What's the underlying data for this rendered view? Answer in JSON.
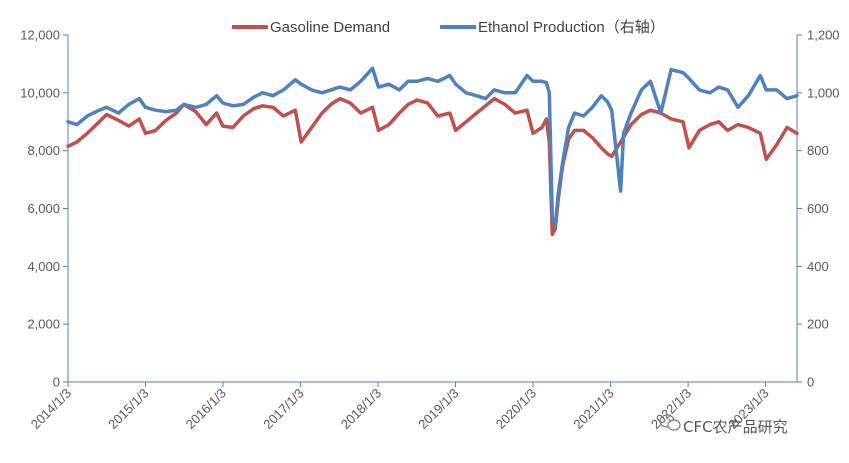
{
  "chart_data": {
    "type": "line",
    "title": "",
    "xlabel": "",
    "ylabel": "",
    "x_tick_labels": [
      "2014/1/3",
      "2015/1/3",
      "2016/1/3",
      "2017/1/3",
      "2018/1/3",
      "2019/1/3",
      "2020/1/3",
      "2021/1/3",
      "2022/1/3",
      "2023/1/3"
    ],
    "x_range": [
      "2014-01-03",
      "2023-05-31"
    ],
    "y_left": {
      "range": [
        0,
        12000
      ],
      "ticks": [
        "0",
        "2,000",
        "4,000",
        "6,000",
        "8,000",
        "10,000",
        "12,000"
      ]
    },
    "y_right": {
      "range": [
        0,
        1200
      ],
      "ticks": [
        "0",
        "200",
        "400",
        "600",
        "800",
        "1,000",
        "1,200"
      ]
    },
    "grid": false,
    "legend_position": "top",
    "series": [
      {
        "name": "Gasoline Demand",
        "axis": "left",
        "color": "#C0504D",
        "points": [
          [
            "2014-01-03",
            8150
          ],
          [
            "2014-02-14",
            8300
          ],
          [
            "2014-04-04",
            8600
          ],
          [
            "2014-05-30",
            9000
          ],
          [
            "2014-07-04",
            9250
          ],
          [
            "2014-08-29",
            9050
          ],
          [
            "2014-10-17",
            8850
          ],
          [
            "2014-12-05",
            9100
          ],
          [
            "2015-01-03",
            8600
          ],
          [
            "2015-02-20",
            8700
          ],
          [
            "2015-04-10",
            9050
          ],
          [
            "2015-05-29",
            9300
          ],
          [
            "2015-07-03",
            9600
          ],
          [
            "2015-08-28",
            9350
          ],
          [
            "2015-10-16",
            8900
          ],
          [
            "2015-12-04",
            9300
          ],
          [
            "2016-01-03",
            8850
          ],
          [
            "2016-02-19",
            8800
          ],
          [
            "2016-04-08",
            9200
          ],
          [
            "2016-05-27",
            9450
          ],
          [
            "2016-07-08",
            9550
          ],
          [
            "2016-08-26",
            9500
          ],
          [
            "2016-10-14",
            9200
          ],
          [
            "2016-12-09",
            9400
          ],
          [
            "2017-01-06",
            8300
          ],
          [
            "2017-02-24",
            8800
          ],
          [
            "2017-04-14",
            9300
          ],
          [
            "2017-05-26",
            9600
          ],
          [
            "2017-07-07",
            9800
          ],
          [
            "2017-08-25",
            9650
          ],
          [
            "2017-10-13",
            9300
          ],
          [
            "2017-12-08",
            9500
          ],
          [
            "2018-01-05",
            8700
          ],
          [
            "2018-02-23",
            8900
          ],
          [
            "2018-04-13",
            9300
          ],
          [
            "2018-05-25",
            9600
          ],
          [
            "2018-07-06",
            9750
          ],
          [
            "2018-08-24",
            9650
          ],
          [
            "2018-10-12",
            9200
          ],
          [
            "2018-12-07",
            9300
          ],
          [
            "2019-01-04",
            8700
          ],
          [
            "2019-02-22",
            9000
          ],
          [
            "2019-04-12",
            9300
          ],
          [
            "2019-05-24",
            9550
          ],
          [
            "2019-07-05",
            9800
          ],
          [
            "2019-08-23",
            9600
          ],
          [
            "2019-10-11",
            9300
          ],
          [
            "2019-12-06",
            9400
          ],
          [
            "2020-01-03",
            8600
          ],
          [
            "2020-02-14",
            8800
          ],
          [
            "2020-03-06",
            9100
          ],
          [
            "2020-03-20",
            8300
          ],
          [
            "2020-04-03",
            5100
          ],
          [
            "2020-04-17",
            5300
          ],
          [
            "2020-05-01",
            6300
          ],
          [
            "2020-05-22",
            7500
          ],
          [
            "2020-06-19",
            8400
          ],
          [
            "2020-07-17",
            8700
          ],
          [
            "2020-08-28",
            8700
          ],
          [
            "2020-10-09",
            8450
          ],
          [
            "2020-11-20",
            8100
          ],
          [
            "2020-12-18",
            7900
          ],
          [
            "2021-01-08",
            7800
          ],
          [
            "2021-02-19",
            8300
          ],
          [
            "2021-04-09",
            8900
          ],
          [
            "2021-05-28",
            9250
          ],
          [
            "2021-07-09",
            9400
          ],
          [
            "2021-08-27",
            9300
          ],
          [
            "2021-10-15",
            9100
          ],
          [
            "2021-12-10",
            9000
          ],
          [
            "2022-01-07",
            8100
          ],
          [
            "2022-02-25",
            8700
          ],
          [
            "2022-04-15",
            8900
          ],
          [
            "2022-05-27",
            9000
          ],
          [
            "2022-07-08",
            8700
          ],
          [
            "2022-08-26",
            8900
          ],
          [
            "2022-10-14",
            8800
          ],
          [
            "2022-12-09",
            8600
          ],
          [
            "2023-01-06",
            7700
          ],
          [
            "2023-02-24",
            8200
          ],
          [
            "2023-04-14",
            8800
          ],
          [
            "2023-05-31",
            8600
          ]
        ]
      },
      {
        "name": "Ethanol Production（右轴）",
        "axis": "right",
        "color": "#4F81BD",
        "points": [
          [
            "2014-01-03",
            900
          ],
          [
            "2014-02-14",
            890
          ],
          [
            "2014-04-04",
            920
          ],
          [
            "2014-05-30",
            940
          ],
          [
            "2014-07-04",
            950
          ],
          [
            "2014-08-29",
            930
          ],
          [
            "2014-10-17",
            960
          ],
          [
            "2014-12-05",
            980
          ],
          [
            "2015-01-03",
            950
          ],
          [
            "2015-02-20",
            940
          ],
          [
            "2015-04-10",
            935
          ],
          [
            "2015-05-29",
            940
          ],
          [
            "2015-07-03",
            960
          ],
          [
            "2015-08-28",
            950
          ],
          [
            "2015-10-16",
            960
          ],
          [
            "2015-12-04",
            990
          ],
          [
            "2016-01-03",
            965
          ],
          [
            "2016-02-19",
            955
          ],
          [
            "2016-04-08",
            960
          ],
          [
            "2016-05-27",
            985
          ],
          [
            "2016-07-08",
            1000
          ],
          [
            "2016-08-26",
            990
          ],
          [
            "2016-10-14",
            1010
          ],
          [
            "2016-12-09",
            1045
          ],
          [
            "2017-01-06",
            1030
          ],
          [
            "2017-02-24",
            1010
          ],
          [
            "2017-04-14",
            1000
          ],
          [
            "2017-05-26",
            1010
          ],
          [
            "2017-07-07",
            1020
          ],
          [
            "2017-08-25",
            1010
          ],
          [
            "2017-10-13",
            1040
          ],
          [
            "2017-12-08",
            1085
          ],
          [
            "2018-01-05",
            1020
          ],
          [
            "2018-02-23",
            1030
          ],
          [
            "2018-04-13",
            1010
          ],
          [
            "2018-05-25",
            1040
          ],
          [
            "2018-07-06",
            1040
          ],
          [
            "2018-08-24",
            1050
          ],
          [
            "2018-10-12",
            1040
          ],
          [
            "2018-12-07",
            1060
          ],
          [
            "2019-01-04",
            1030
          ],
          [
            "2019-02-22",
            1000
          ],
          [
            "2019-04-12",
            990
          ],
          [
            "2019-05-24",
            980
          ],
          [
            "2019-07-05",
            1010
          ],
          [
            "2019-08-23",
            1000
          ],
          [
            "2019-10-11",
            1000
          ],
          [
            "2019-12-06",
            1060
          ],
          [
            "2020-01-03",
            1040
          ],
          [
            "2020-02-14",
            1040
          ],
          [
            "2020-03-06",
            1035
          ],
          [
            "2020-03-20",
            1000
          ],
          [
            "2020-04-03",
            570
          ],
          [
            "2020-04-17",
            540
          ],
          [
            "2020-05-01",
            650
          ],
          [
            "2020-05-22",
            760
          ],
          [
            "2020-06-19",
            880
          ],
          [
            "2020-07-17",
            930
          ],
          [
            "2020-08-28",
            920
          ],
          [
            "2020-10-09",
            950
          ],
          [
            "2020-11-20",
            990
          ],
          [
            "2020-12-18",
            970
          ],
          [
            "2021-01-08",
            940
          ],
          [
            "2021-02-19",
            660
          ],
          [
            "2021-03-05",
            860
          ],
          [
            "2021-04-09",
            930
          ],
          [
            "2021-05-28",
            1010
          ],
          [
            "2021-07-09",
            1040
          ],
          [
            "2021-08-27",
            930
          ],
          [
            "2021-10-15",
            1080
          ],
          [
            "2021-12-10",
            1070
          ],
          [
            "2022-01-07",
            1050
          ],
          [
            "2022-02-25",
            1010
          ],
          [
            "2022-04-15",
            1000
          ],
          [
            "2022-05-27",
            1020
          ],
          [
            "2022-07-08",
            1010
          ],
          [
            "2022-08-26",
            950
          ],
          [
            "2022-10-14",
            990
          ],
          [
            "2022-12-09",
            1060
          ],
          [
            "2023-01-06",
            1010
          ],
          [
            "2023-02-24",
            1010
          ],
          [
            "2023-04-14",
            980
          ],
          [
            "2023-05-31",
            990
          ]
        ]
      }
    ]
  },
  "watermark": {
    "text": "CFC农产品研究",
    "icon": "wechat-icon"
  }
}
